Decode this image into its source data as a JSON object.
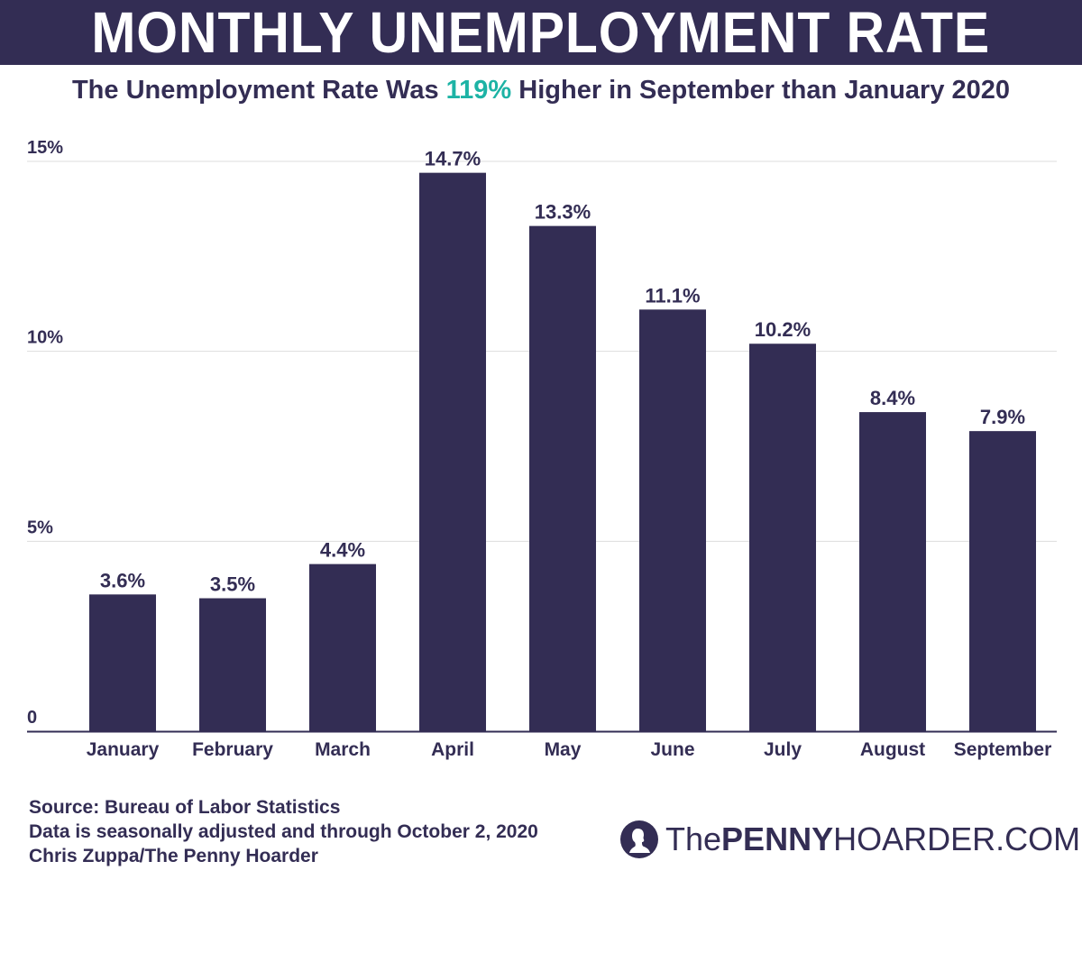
{
  "header": {
    "title": "MONTHLY UNEMPLOYMENT RATE"
  },
  "subtitle": {
    "before": "The Unemployment Rate Was ",
    "highlight": "119%",
    "after": " Higher in September than January 2020"
  },
  "colors": {
    "bar": "#332d54",
    "banner": "#332d54",
    "highlight": "#1db3a5",
    "grid": "#dddddd"
  },
  "chart_data": {
    "type": "bar",
    "title": "MONTHLY UNEMPLOYMENT RATE",
    "categories": [
      "January",
      "February",
      "March",
      "April",
      "May",
      "June",
      "July",
      "August",
      "September"
    ],
    "values": [
      3.6,
      3.5,
      4.4,
      14.7,
      13.3,
      11.1,
      10.2,
      8.4,
      7.9
    ],
    "data_labels": [
      "3.6%",
      "3.5%",
      "4.4%",
      "14.7%",
      "13.3%",
      "11.1%",
      "10.2%",
      "8.4%",
      "7.9%"
    ],
    "yticks": [
      0,
      5,
      10,
      15
    ],
    "ytick_labels": [
      "0",
      "5%",
      "10%",
      "15%"
    ],
    "ylim": [
      0,
      15
    ],
    "grid": true,
    "xlabel": "",
    "ylabel": ""
  },
  "footer": {
    "source": "Source: Bureau of Labor Statistics",
    "note": "Data is seasonally adjusted and through October 2, 2020",
    "credit": "Chris Zuppa/The Penny Hoarder"
  },
  "logo": {
    "the": "The",
    "penny": "PENNY",
    "rest": "HOARDER.COM",
    "icon": "penny-profile-icon"
  }
}
